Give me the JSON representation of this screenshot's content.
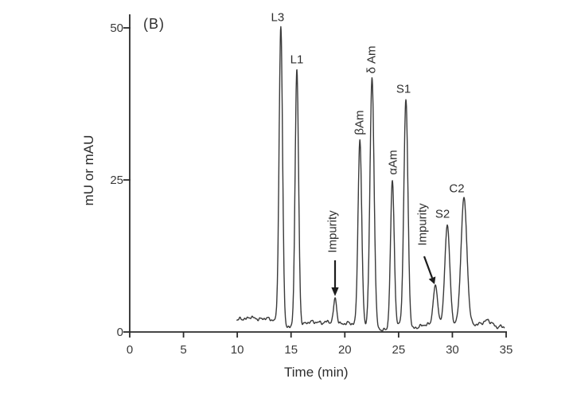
{
  "chart_data": {
    "type": "line",
    "panel_label": "(B)",
    "xlabel": "Time (min)",
    "ylabel": "mU or mAU",
    "xlim": [
      0,
      35
    ],
    "ylim": [
      0,
      50
    ],
    "x_ticks": [
      "0",
      "5",
      "10",
      "15",
      "20",
      "25",
      "30",
      "35"
    ],
    "x_tick_values": [
      0,
      5,
      10,
      15,
      20,
      25,
      30,
      35
    ],
    "y_ticks": [
      "0",
      "25",
      "50"
    ],
    "y_tick_values": [
      0,
      25,
      50
    ],
    "grid": false,
    "legend": "none",
    "trace_color": "#3a3a3a",
    "axis_color": "#2b2b2b",
    "trace_start_min": 9.95,
    "trace_end_min": 34.85,
    "peaks": [
      {
        "label": "L3",
        "retention_min": 14.05,
        "apex_mau": 50.2,
        "sigma_min": 0.16,
        "arrow": false
      },
      {
        "label": "L1",
        "retention_min": 15.54,
        "apex_mau": 43.2,
        "sigma_min": 0.16,
        "arrow": false
      },
      {
        "label": "Impurity",
        "retention_min": 19.1,
        "apex_mau": 5.6,
        "sigma_min": 0.14,
        "arrow": true
      },
      {
        "label": "βAm",
        "retention_min": 21.4,
        "apex_mau": 31.6,
        "sigma_min": 0.17,
        "arrow": false
      },
      {
        "label": "δ Am",
        "retention_min": 22.53,
        "apex_mau": 41.8,
        "sigma_min": 0.19,
        "arrow": false
      },
      {
        "label": "αAm",
        "retention_min": 24.42,
        "apex_mau": 24.9,
        "sigma_min": 0.17,
        "arrow": false
      },
      {
        "label": "S1",
        "retention_min": 25.68,
        "apex_mau": 38.2,
        "sigma_min": 0.19,
        "arrow": false
      },
      {
        "label": "Impurity",
        "retention_min": 28.42,
        "apex_mau": 7.7,
        "sigma_min": 0.2,
        "arrow": true
      },
      {
        "label": "S2",
        "retention_min": 29.53,
        "apex_mau": 17.6,
        "sigma_min": 0.23,
        "arrow": false
      },
      {
        "label": "C2",
        "retention_min": 31.08,
        "apex_mau": 22.1,
        "sigma_min": 0.27,
        "arrow": false
      }
    ],
    "baseline_mau": [
      [
        9.95,
        1.9
      ],
      [
        10.3,
        2.2
      ],
      [
        10.8,
        2.1
      ],
      [
        11.2,
        2.5
      ],
      [
        11.7,
        2.2
      ],
      [
        12.2,
        2.1
      ],
      [
        12.7,
        2.3
      ],
      [
        13.2,
        2.0
      ],
      [
        13.7,
        1.9
      ],
      [
        14.05,
        1.7
      ],
      [
        14.5,
        1.0
      ],
      [
        14.85,
        0.7
      ],
      [
        15.2,
        0.9
      ],
      [
        15.54,
        1.1
      ],
      [
        15.9,
        1.0
      ],
      [
        16.4,
        1.5
      ],
      [
        16.9,
        1.7
      ],
      [
        17.4,
        1.6
      ],
      [
        17.9,
        1.5
      ],
      [
        18.4,
        1.7
      ],
      [
        19.1,
        1.5
      ],
      [
        19.7,
        1.3
      ],
      [
        20.3,
        1.5
      ],
      [
        20.9,
        1.3
      ],
      [
        21.4,
        1.3
      ],
      [
        21.97,
        1.0
      ],
      [
        22.53,
        1.1
      ],
      [
        23.1,
        0.5
      ],
      [
        23.6,
        0.3
      ],
      [
        24.0,
        0.4
      ],
      [
        24.42,
        0.7
      ],
      [
        25.05,
        1.2
      ],
      [
        25.68,
        0.7
      ],
      [
        26.2,
        0.5
      ],
      [
        26.8,
        0.8
      ],
      [
        27.4,
        1.2
      ],
      [
        28.0,
        1.2
      ],
      [
        28.42,
        1.6
      ],
      [
        28.97,
        1.3
      ],
      [
        29.53,
        1.5
      ],
      [
        30.1,
        1.2
      ],
      [
        30.6,
        1.4
      ],
      [
        31.08,
        1.0
      ],
      [
        31.7,
        1.3
      ],
      [
        32.3,
        1.2
      ],
      [
        32.9,
        1.6
      ],
      [
        33.3,
        2.0
      ],
      [
        33.7,
        1.4
      ],
      [
        34.1,
        0.8
      ],
      [
        34.5,
        0.9
      ],
      [
        34.85,
        0.8
      ]
    ]
  }
}
